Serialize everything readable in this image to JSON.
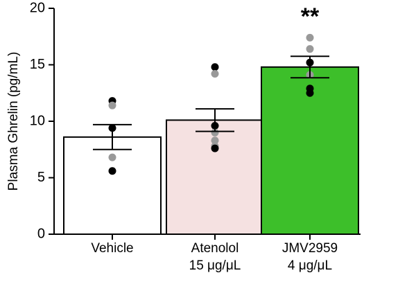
{
  "chart_data": {
    "type": "bar",
    "y_label": "Plasma Ghrelin (pg/mL)",
    "categories": [
      "Vehicle",
      "Atenolol\n15 μg/μL",
      "JMV2959\n4 μg/μL"
    ],
    "values": [
      8.6,
      10.1,
      14.8
    ],
    "errors": [
      1.1,
      1.0,
      0.95
    ],
    "colors": [
      "#ffffff",
      "#f5e1e1",
      "#3dbf2a"
    ],
    "points": [
      [
        {
          "y": 11.8,
          "color": "#000000"
        },
        {
          "y": 11.4,
          "color": "#999999"
        },
        {
          "y": 9.4,
          "color": "#000000"
        },
        {
          "y": 6.8,
          "color": "#999999"
        },
        {
          "y": 5.6,
          "color": "#000000"
        }
      ],
      [
        {
          "y": 14.8,
          "color": "#000000"
        },
        {
          "y": 14.2,
          "color": "#999999"
        },
        {
          "y": 9.6,
          "color": "#000000"
        },
        {
          "y": 9.0,
          "color": "#999999"
        },
        {
          "y": 8.3,
          "color": "#999999"
        },
        {
          "y": 7.8,
          "color": "#999999"
        },
        {
          "y": 7.6,
          "color": "#000000"
        }
      ],
      [
        {
          "y": 17.4,
          "color": "#999999"
        },
        {
          "y": 16.4,
          "color": "#999999"
        },
        {
          "y": 15.2,
          "color": "#000000"
        },
        {
          "y": 14.1,
          "color": "#999999"
        },
        {
          "y": 12.9,
          "color": "#000000"
        },
        {
          "y": 12.5,
          "color": "#000000"
        }
      ]
    ],
    "annotations": [
      {
        "category": 2,
        "text": "**"
      }
    ],
    "ylim": [
      0,
      20
    ],
    "yticks": [
      0,
      5,
      10,
      15,
      20
    ]
  }
}
